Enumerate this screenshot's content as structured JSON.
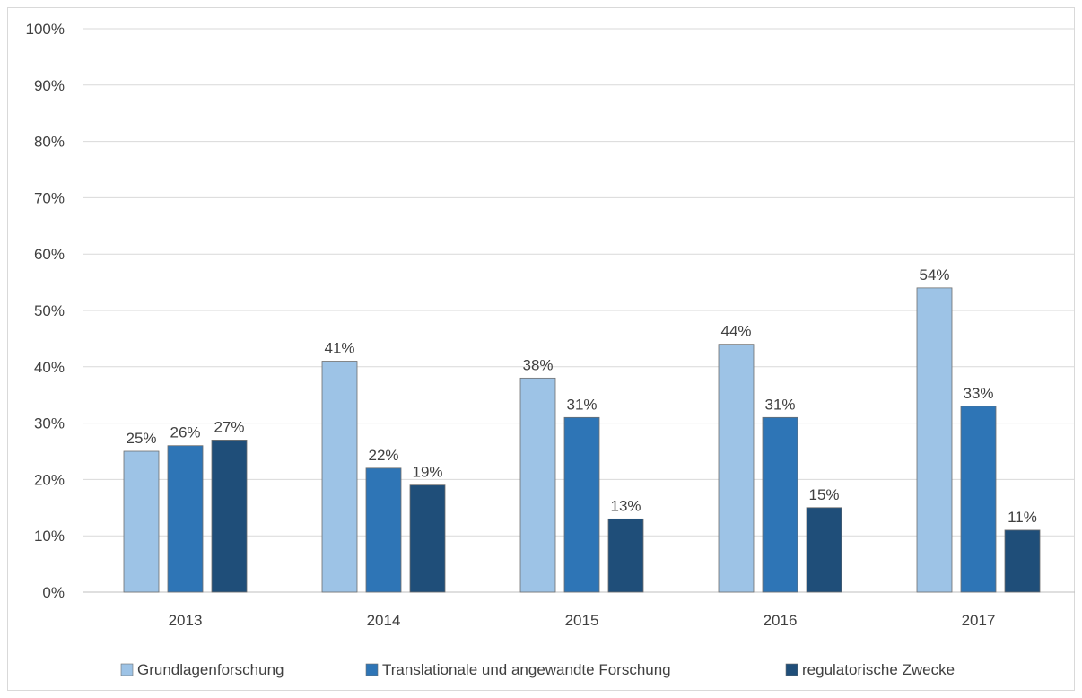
{
  "chart_data": {
    "type": "bar",
    "categories": [
      "2013",
      "2014",
      "2015",
      "2016",
      "2017"
    ],
    "series": [
      {
        "name": "Grundlagenforschung",
        "color": "#9dc3e6",
        "values": [
          25,
          41,
          38,
          44,
          54
        ],
        "labels": [
          "25%",
          "41%",
          "38%",
          "44%",
          "54%"
        ]
      },
      {
        "name": "Translationale und angewandte Forschung",
        "color": "#2e75b6",
        "values": [
          26,
          22,
          31,
          31,
          33
        ],
        "labels": [
          "26%",
          "22%",
          "31%",
          "31%",
          "33%"
        ]
      },
      {
        "name": "regulatorische Zwecke",
        "color": "#1f4e79",
        "values": [
          27,
          19,
          13,
          15,
          11
        ],
        "labels": [
          "27%",
          "19%",
          "13%",
          "15%",
          "11%"
        ]
      }
    ],
    "y_ticks": [
      "0%",
      "10%",
      "20%",
      "30%",
      "40%",
      "50%",
      "60%",
      "70%",
      "80%",
      "90%",
      "100%"
    ],
    "ylim": [
      0,
      100
    ],
    "grid": true,
    "legend_position": "bottom"
  }
}
